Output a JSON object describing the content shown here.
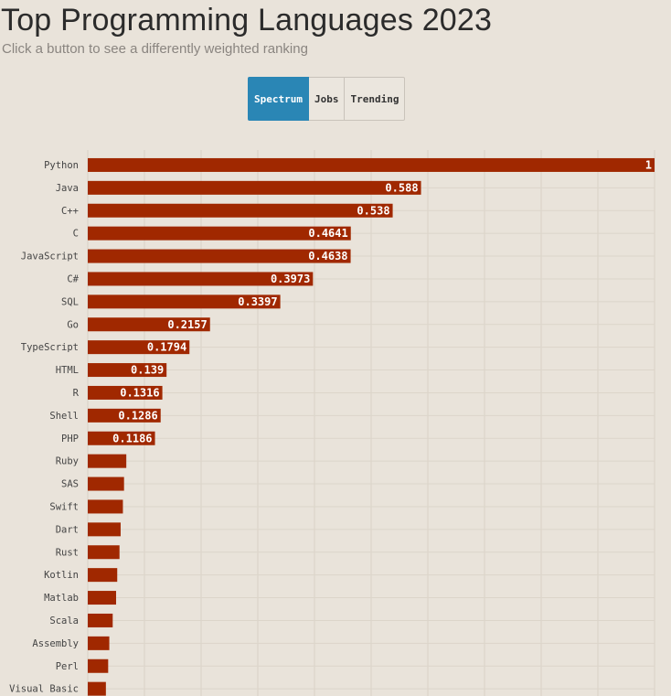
{
  "header": {
    "title": "Top Programming Languages 2023",
    "subtitle": "Click a button to see a differently weighted ranking"
  },
  "buttons": [
    {
      "label": "Spectrum",
      "active": true
    },
    {
      "label": "Jobs",
      "active": false
    },
    {
      "label": "Trending",
      "active": false
    }
  ],
  "colors": {
    "background": "#e9e3da",
    "bar": "#a02800",
    "active_button": "#2a86b5"
  },
  "chart_data": {
    "type": "bar",
    "orientation": "horizontal",
    "title": "",
    "xlabel": "",
    "ylabel": "",
    "xlim": [
      0,
      1
    ],
    "grid": true,
    "categories": [
      "Python",
      "Java",
      "C++",
      "C",
      "JavaScript",
      "C#",
      "SQL",
      "Go",
      "TypeScript",
      "HTML",
      "R",
      "Shell",
      "PHP",
      "Ruby",
      "SAS",
      "Swift",
      "Dart",
      "Rust",
      "Kotlin",
      "Matlab",
      "Scala",
      "Assembly",
      "Perl",
      "Visual Basic"
    ],
    "values": [
      1,
      0.588,
      0.538,
      0.4641,
      0.4638,
      0.3973,
      0.3397,
      0.2157,
      0.1794,
      0.139,
      0.1316,
      0.1286,
      0.1186,
      0.068,
      0.064,
      0.062,
      0.058,
      0.056,
      0.052,
      0.05,
      0.044,
      0.038,
      0.036,
      0.032
    ],
    "value_labels": [
      "1",
      "0.588",
      "0.538",
      "0.4641",
      "0.4638",
      "0.3973",
      "0.3397",
      "0.2157",
      "0.1794",
      "0.139",
      "0.1316",
      "0.1286",
      "0.1186",
      "",
      "",
      "",
      "",
      "",
      "",
      "",
      "",
      "",
      "",
      ""
    ]
  }
}
